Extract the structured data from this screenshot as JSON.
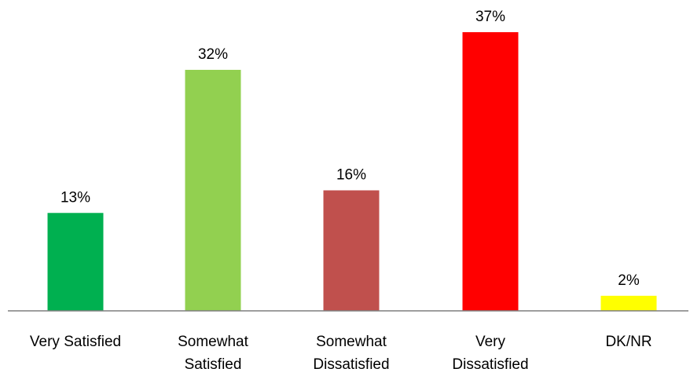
{
  "chart_data": {
    "type": "bar",
    "categories": [
      [
        "Very Satisfied"
      ],
      [
        "Somewhat",
        "Satisfied"
      ],
      [
        "Somewhat",
        "Dissatisfied"
      ],
      [
        "Very",
        "Dissatisfied"
      ],
      [
        "DK/NR"
      ]
    ],
    "values": [
      13,
      32,
      16,
      37,
      2
    ],
    "data_labels": [
      "13%",
      "32%",
      "16%",
      "37%",
      "2%"
    ],
    "colors": [
      "#00b050",
      "#92d050",
      "#c0504d",
      "#ff0000",
      "#ffff00"
    ],
    "axis_line_color": "#7f7f7f",
    "ylim": [
      0,
      37
    ],
    "grid": false,
    "legend": "none"
  }
}
